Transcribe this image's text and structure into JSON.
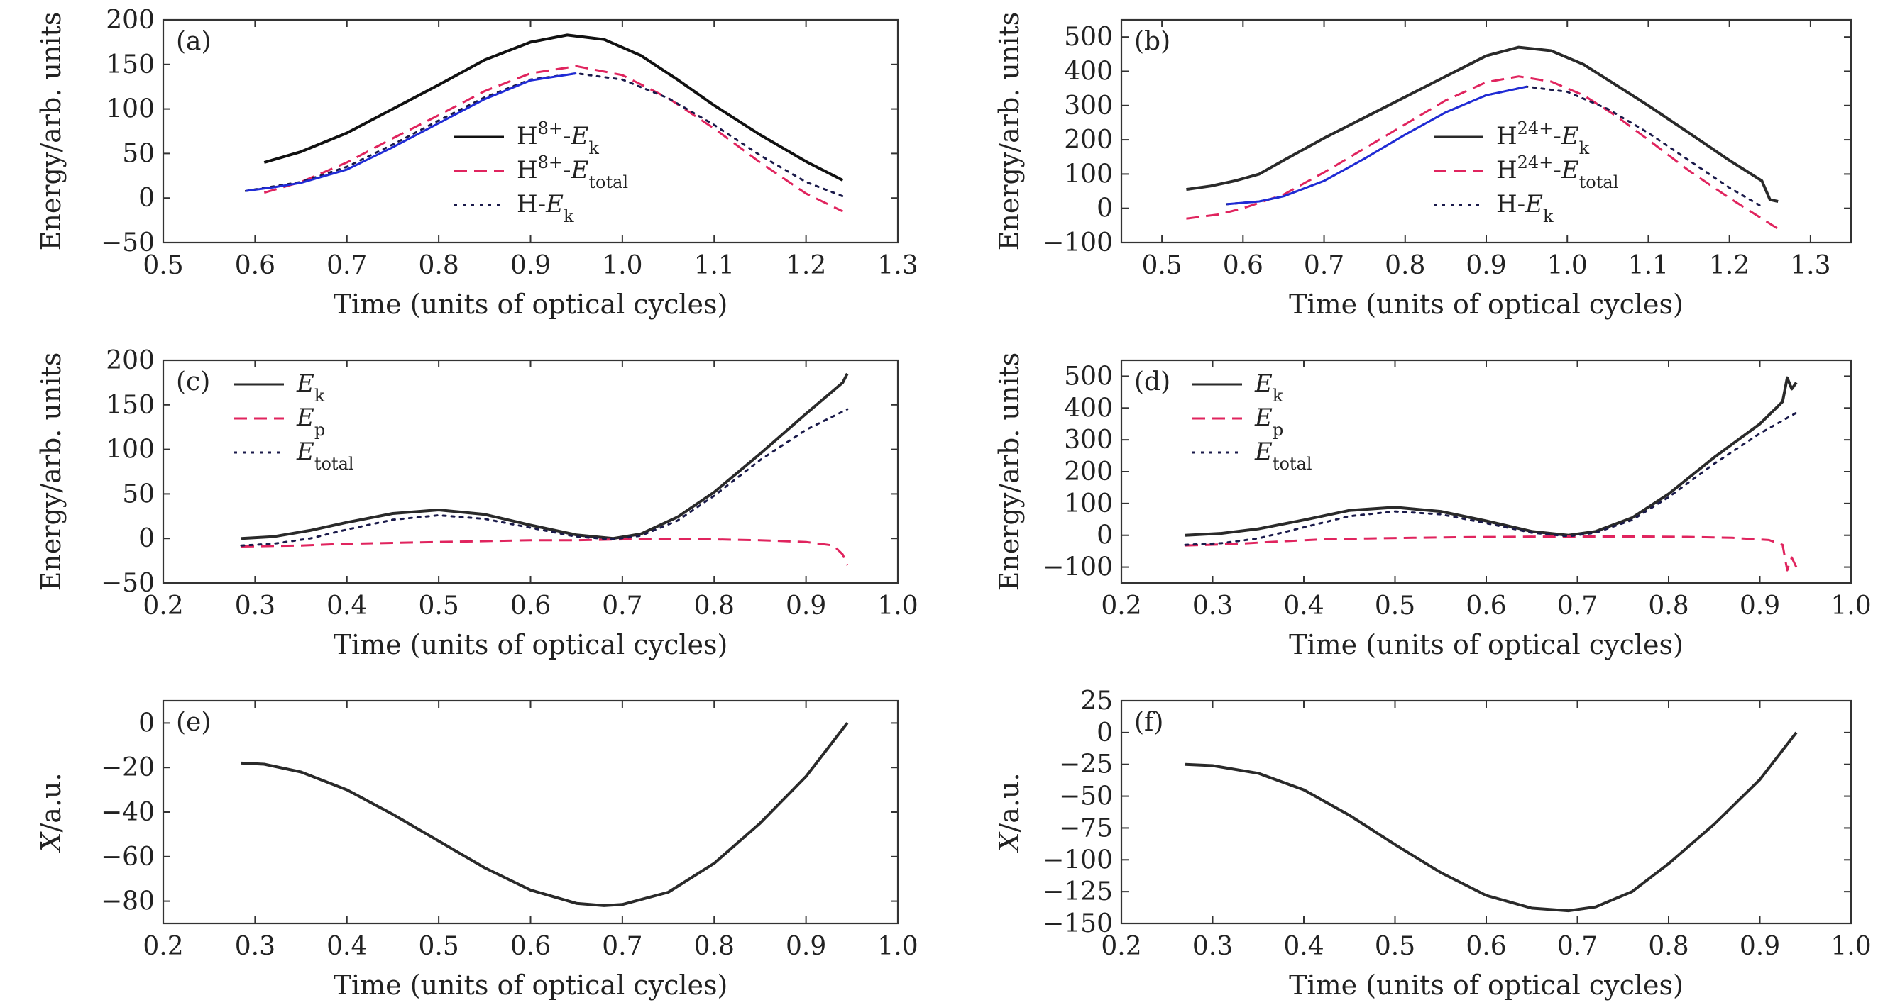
{
  "colors": {
    "black": "#2a2a2a",
    "red": "#e0245e",
    "blue": "#1f2bd6",
    "navy": "#1a1a4a",
    "orange": "#e07a1a"
  },
  "chart_data": [
    {
      "id": "a",
      "type": "line",
      "panel_label": "(a)",
      "xlabel": "Time (units of optical cycles)",
      "ylabel": "Energy/arb. units",
      "xlim": [
        0.5,
        1.3
      ],
      "ylim": [
        -50,
        200
      ],
      "xticks": [
        "0.5",
        "0.6",
        "0.7",
        "0.8",
        "0.9",
        "1.0",
        "1.1",
        "1.2",
        "1.3"
      ],
      "yticks": [
        "−50",
        "0",
        "50",
        "100",
        "150",
        "200"
      ],
      "legend_position": "center",
      "series": [
        {
          "name": "H8+-Ek",
          "legend": {
            "base": "H",
            "sup": "8+",
            "mid": "-",
            "ital": "E",
            "sub": "k"
          },
          "style": "solid",
          "color": "#111111",
          "x": [
            0.61,
            0.65,
            0.7,
            0.75,
            0.8,
            0.85,
            0.9,
            0.94,
            0.98,
            1.02,
            1.06,
            1.1,
            1.15,
            1.2,
            1.24
          ],
          "y": [
            40,
            52,
            73,
            100,
            127,
            155,
            175,
            183,
            178,
            160,
            133,
            104,
            71,
            41,
            20
          ]
        },
        {
          "name": "H8+-Etotal",
          "legend": {
            "base": "H",
            "sup": "8+",
            "mid": "-",
            "ital": "E",
            "sub": "total"
          },
          "style": "dashed",
          "color": "#e0245e",
          "x": [
            0.61,
            0.65,
            0.7,
            0.75,
            0.8,
            0.85,
            0.9,
            0.95,
            1.0,
            1.05,
            1.1,
            1.15,
            1.2,
            1.24
          ],
          "y": [
            6,
            18,
            40,
            67,
            93,
            120,
            140,
            148,
            138,
            112,
            78,
            40,
            5,
            -15
          ]
        },
        {
          "name": "H-Ek",
          "legend": {
            "base": "H",
            "sup": "",
            "mid": "-",
            "ital": "E",
            "sub": "k"
          },
          "style": "dotted",
          "color": "#1a1a4a",
          "x": [
            0.59,
            0.65,
            0.7,
            0.75,
            0.8,
            0.85,
            0.9,
            0.95,
            1.0,
            1.05,
            1.1,
            1.15,
            1.2,
            1.24
          ],
          "y": [
            8,
            18,
            35,
            60,
            87,
            113,
            133,
            140,
            133,
            112,
            82,
            48,
            18,
            2
          ]
        },
        {
          "name": "",
          "style": "solid",
          "color": "#1f2bd6",
          "legend": null,
          "x": [
            0.59,
            0.62,
            0.65,
            0.7,
            0.75,
            0.8,
            0.85,
            0.9,
            0.95
          ],
          "y": [
            8,
            12,
            17,
            32,
            57,
            84,
            111,
            132,
            140
          ]
        }
      ]
    },
    {
      "id": "b",
      "type": "line",
      "panel_label": "(b)",
      "xlabel": "Time (units of optical cycles)",
      "ylabel": "Energy/arb. units",
      "xlim": [
        0.45,
        1.35
      ],
      "ylim": [
        -100,
        550
      ],
      "xticks": [
        "0.5",
        "0.6",
        "0.7",
        "0.8",
        "0.9",
        "1.0",
        "1.1",
        "1.2",
        "1.3"
      ],
      "yticks": [
        "−100",
        "0",
        "100",
        "200",
        "300",
        "400",
        "500"
      ],
      "legend_position": "center",
      "series": [
        {
          "name": "H24+-Ek",
          "legend": {
            "base": "H",
            "sup": "24+",
            "mid": "-",
            "ital": "E",
            "sub": "k"
          },
          "style": "solid",
          "color": "#2a2a2a",
          "x": [
            0.53,
            0.56,
            0.59,
            0.62,
            0.65,
            0.7,
            0.75,
            0.8,
            0.85,
            0.9,
            0.94,
            0.98,
            1.02,
            1.06,
            1.1,
            1.15,
            1.2,
            1.24,
            1.25,
            1.26
          ],
          "y": [
            55,
            65,
            80,
            100,
            140,
            205,
            265,
            325,
            385,
            445,
            470,
            460,
            420,
            360,
            300,
            220,
            140,
            80,
            25,
            20
          ]
        },
        {
          "name": "H24+-Etotal",
          "legend": {
            "base": "H",
            "sup": "24+",
            "mid": "-",
            "ital": "E",
            "sub": "total"
          },
          "style": "dashed",
          "color": "#e0245e",
          "x": [
            0.53,
            0.57,
            0.6,
            0.65,
            0.7,
            0.75,
            0.8,
            0.85,
            0.9,
            0.94,
            0.98,
            1.02,
            1.06,
            1.1,
            1.15,
            1.2,
            1.24,
            1.26
          ],
          "y": [
            -30,
            -18,
            0,
            40,
            105,
            175,
            245,
            315,
            368,
            385,
            370,
            330,
            270,
            200,
            110,
            30,
            -30,
            -60
          ]
        },
        {
          "name": "H-Ek",
          "legend": {
            "base": "H",
            "sup": "",
            "mid": "-",
            "ital": "E",
            "sub": "k"
          },
          "style": "dotted",
          "color": "#1a1a4a",
          "x": [
            0.58,
            0.62,
            0.65,
            0.7,
            0.75,
            0.8,
            0.85,
            0.9,
            0.95,
            1.0,
            1.05,
            1.1,
            1.15,
            1.2,
            1.24
          ],
          "y": [
            12,
            20,
            35,
            80,
            145,
            215,
            280,
            330,
            355,
            340,
            290,
            220,
            140,
            60,
            5
          ]
        },
        {
          "name": "",
          "style": "solid",
          "color": "#1f2bd6",
          "legend": null,
          "x": [
            0.58,
            0.62,
            0.65,
            0.7,
            0.75,
            0.8,
            0.85,
            0.9,
            0.95
          ],
          "y": [
            12,
            20,
            35,
            80,
            145,
            215,
            280,
            330,
            355
          ]
        }
      ]
    },
    {
      "id": "c",
      "type": "line",
      "panel_label": "(c)",
      "xlabel": "Time (units of optical cycles)",
      "ylabel": "Energy/arb. units",
      "xlim": [
        0.2,
        1.0
      ],
      "ylim": [
        -50,
        200
      ],
      "xticks": [
        "0.2",
        "0.3",
        "0.4",
        "0.5",
        "0.6",
        "0.7",
        "0.8",
        "0.9",
        "1.0"
      ],
      "yticks": [
        "−50",
        "0",
        "50",
        "100",
        "150",
        "200"
      ],
      "legend_position": "top-left",
      "series": [
        {
          "name": "Ek",
          "legend": {
            "base": "",
            "sup": "",
            "mid": "",
            "ital": "E",
            "sub": "k"
          },
          "style": "solid",
          "color": "#2a2a2a",
          "x": [
            0.285,
            0.32,
            0.36,
            0.4,
            0.45,
            0.5,
            0.55,
            0.6,
            0.65,
            0.69,
            0.72,
            0.76,
            0.8,
            0.85,
            0.9,
            0.94,
            0.945
          ],
          "y": [
            0,
            2,
            9,
            18,
            28,
            32,
            27,
            15,
            4,
            0,
            5,
            24,
            52,
            95,
            140,
            175,
            185
          ]
        },
        {
          "name": "Ep",
          "legend": {
            "base": "",
            "sup": "",
            "mid": "",
            "ital": "E",
            "sub": "p"
          },
          "style": "dashed",
          "color": "#e0245e",
          "x": [
            0.285,
            0.35,
            0.4,
            0.45,
            0.5,
            0.55,
            0.6,
            0.65,
            0.7,
            0.75,
            0.8,
            0.85,
            0.9,
            0.93,
            0.94,
            0.945
          ],
          "y": [
            -9,
            -8,
            -6,
            -5,
            -4,
            -3,
            -2,
            -2,
            -1,
            -1,
            -1,
            -2,
            -4,
            -8,
            -18,
            -30
          ]
        },
        {
          "name": "Etotal",
          "legend": {
            "base": "",
            "sup": "",
            "mid": "",
            "ital": "E",
            "sub": "total"
          },
          "style": "dotted",
          "color": "#1a1a4a",
          "x": [
            0.285,
            0.32,
            0.36,
            0.4,
            0.45,
            0.5,
            0.55,
            0.6,
            0.65,
            0.69,
            0.72,
            0.76,
            0.8,
            0.85,
            0.9,
            0.945
          ],
          "y": [
            -8,
            -6,
            0,
            10,
            21,
            26,
            22,
            12,
            2,
            -1,
            3,
            20,
            48,
            88,
            122,
            145
          ]
        }
      ]
    },
    {
      "id": "d",
      "type": "line",
      "panel_label": "(d)",
      "xlabel": "Time (units of optical cycles)",
      "ylabel": "Energy/arb. units",
      "xlim": [
        0.2,
        1.0
      ],
      "ylim": [
        -150,
        550
      ],
      "xticks": [
        "0.2",
        "0.3",
        "0.4",
        "0.5",
        "0.6",
        "0.7",
        "0.8",
        "0.9",
        "1.0"
      ],
      "yticks": [
        "−100",
        "0",
        "100",
        "200",
        "300",
        "400",
        "500"
      ],
      "legend_position": "top-left",
      "series": [
        {
          "name": "Ek",
          "legend": {
            "base": "",
            "sup": "",
            "mid": "",
            "ital": "E",
            "sub": "k"
          },
          "style": "solid",
          "color": "#2a2a2a",
          "x": [
            0.27,
            0.31,
            0.35,
            0.4,
            0.45,
            0.5,
            0.55,
            0.6,
            0.65,
            0.69,
            0.72,
            0.76,
            0.8,
            0.85,
            0.9,
            0.925,
            0.93,
            0.935,
            0.94
          ],
          "y": [
            0,
            6,
            20,
            48,
            78,
            88,
            75,
            45,
            12,
            0,
            12,
            55,
            130,
            245,
            350,
            420,
            495,
            460,
            480
          ]
        },
        {
          "name": "Ep",
          "legend": {
            "base": "",
            "sup": "",
            "mid": "",
            "ital": "E",
            "sub": "p"
          },
          "style": "dashed",
          "color": "#e0245e",
          "x": [
            0.27,
            0.32,
            0.37,
            0.42,
            0.47,
            0.52,
            0.57,
            0.62,
            0.67,
            0.72,
            0.77,
            0.82,
            0.87,
            0.91,
            0.925,
            0.93,
            0.935,
            0.94
          ],
          "y": [
            -32,
            -28,
            -20,
            -13,
            -10,
            -8,
            -6,
            -5,
            -4,
            -4,
            -4,
            -5,
            -8,
            -15,
            -30,
            -110,
            -70,
            -100
          ]
        },
        {
          "name": "Etotal",
          "legend": {
            "base": "",
            "sup": "",
            "mid": "",
            "ital": "E",
            "sub": "total"
          },
          "style": "dotted",
          "color": "#1a1a4a",
          "x": [
            0.27,
            0.31,
            0.35,
            0.4,
            0.45,
            0.5,
            0.55,
            0.6,
            0.65,
            0.69,
            0.72,
            0.76,
            0.8,
            0.85,
            0.9,
            0.94
          ],
          "y": [
            -30,
            -25,
            -10,
            25,
            60,
            75,
            66,
            38,
            8,
            -3,
            8,
            48,
            120,
            225,
            320,
            385
          ]
        }
      ]
    },
    {
      "id": "e",
      "type": "line",
      "panel_label": "(e)",
      "xlabel": "Time (units of optical cycles)",
      "ylabel": "X/a.u.",
      "xlim": [
        0.2,
        1.0
      ],
      "ylim": [
        -90,
        10
      ],
      "xticks": [
        "0.2",
        "0.3",
        "0.4",
        "0.5",
        "0.6",
        "0.7",
        "0.8",
        "0.9",
        "1.0"
      ],
      "yticks": [
        "−80",
        "−60",
        "−40",
        "−20",
        "0"
      ],
      "legend_position": "none",
      "series": [
        {
          "name": "",
          "legend": null,
          "style": "solid",
          "color": "#2a2a2a",
          "x": [
            0.285,
            0.31,
            0.35,
            0.4,
            0.45,
            0.5,
            0.55,
            0.6,
            0.65,
            0.68,
            0.7,
            0.75,
            0.8,
            0.85,
            0.9,
            0.945
          ],
          "y": [
            -18,
            -18.5,
            -22,
            -30,
            -41,
            -53,
            -65,
            -75,
            -81,
            -82,
            -81.5,
            -76,
            -63,
            -45,
            -24,
            0
          ]
        }
      ]
    },
    {
      "id": "f",
      "type": "line",
      "panel_label": "(f)",
      "xlabel": "Time (units of optical cycles)",
      "ylabel": "X/a.u.",
      "xlim": [
        0.2,
        1.0
      ],
      "ylim": [
        -150,
        25
      ],
      "xticks": [
        "0.2",
        "0.3",
        "0.4",
        "0.5",
        "0.6",
        "0.7",
        "0.8",
        "0.9",
        "1.0"
      ],
      "yticks": [
        "−150",
        "−125",
        "−100",
        "−75",
        "−50",
        "−25",
        "0",
        "25"
      ],
      "legend_position": "none",
      "series": [
        {
          "name": "",
          "legend": null,
          "style": "solid",
          "color": "#2a2a2a",
          "x": [
            0.27,
            0.3,
            0.35,
            0.4,
            0.45,
            0.5,
            0.55,
            0.6,
            0.65,
            0.69,
            0.72,
            0.76,
            0.8,
            0.85,
            0.9,
            0.94
          ],
          "y": [
            -25,
            -26,
            -32,
            -45,
            -65,
            -88,
            -110,
            -128,
            -138,
            -140,
            -137,
            -125,
            -103,
            -72,
            -37,
            0
          ]
        }
      ]
    }
  ]
}
